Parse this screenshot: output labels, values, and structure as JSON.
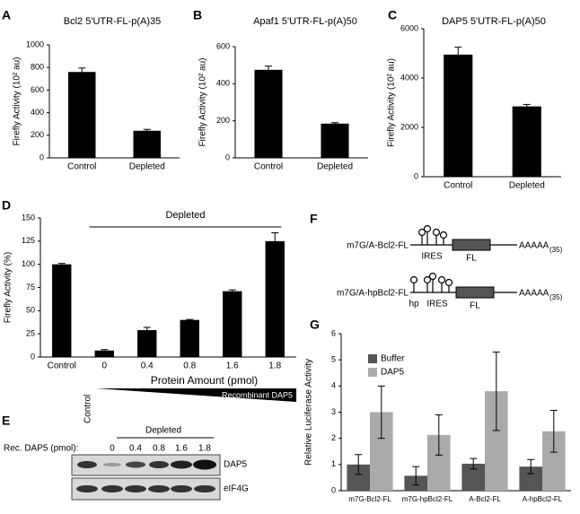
{
  "chart_data": [
    {
      "type": "bar",
      "panel": "A",
      "title": "Bcl2 5'UTR-FL-p(A)35",
      "ylabel": "Firefly Activity (10² au)",
      "categories": [
        "Control",
        "Depleted"
      ],
      "values": [
        760,
        240
      ],
      "errors": [
        35,
        12
      ],
      "color": "#000000",
      "ylim": [
        0,
        1000
      ],
      "yticks": [
        0,
        200,
        400,
        600,
        800,
        1000
      ]
    },
    {
      "type": "bar",
      "panel": "B",
      "title": "Apaf1 5'UTR-FL-p(A)50",
      "ylabel": "Firefly Activity (10² au)",
      "categories": [
        "Control",
        "Depleted"
      ],
      "values": [
        475,
        185
      ],
      "errors": [
        20,
        5
      ],
      "color": "#000000",
      "ylim": [
        0,
        600
      ],
      "yticks": [
        0,
        200,
        400,
        600
      ]
    },
    {
      "type": "bar",
      "panel": "C",
      "title": "DAP5 5'UTR-FL-p(A)50",
      "ylabel": "Firefly Activity (10² au)",
      "categories": [
        "Control",
        "Depleted"
      ],
      "values": [
        4950,
        2850
      ],
      "errors": [
        300,
        80
      ],
      "color": "#000000",
      "ylim": [
        0,
        6000
      ],
      "yticks": [
        0,
        2000,
        4000,
        6000
      ]
    },
    {
      "type": "bar",
      "panel": "D",
      "ylabel": "Firefly Activity (%)",
      "xlabel": "Protein Amount (pmol)",
      "categories": [
        "Control",
        "0",
        "0.4",
        "0.8",
        "1.6",
        "1.8"
      ],
      "values": [
        100,
        7,
        29,
        40,
        71,
        125
      ],
      "errors": [
        1,
        1,
        3,
        0.5,
        1.5,
        9
      ],
      "color": "#000000",
      "ylim": [
        0,
        150
      ],
      "yticks": [
        0,
        25,
        50,
        75,
        100,
        125,
        150
      ],
      "annotations": [
        "Depleted",
        "Recombinant DAP5"
      ]
    },
    {
      "type": "bar",
      "panel": "G",
      "ylabel": "Relative Luciferase Activity",
      "categories": [
        "m7G-Bcl2-FL",
        "m7G-hpBcl2-FL",
        "A-Bcl2-FL",
        "A-hpBcl2-FL"
      ],
      "series": [
        {
          "name": "Buffer",
          "color": "#555555",
          "values": [
            1.0,
            0.57,
            1.03,
            0.92
          ],
          "errors": [
            0.38,
            0.35,
            0.2,
            0.27
          ]
        },
        {
          "name": "DAP5",
          "color": "#aaaaaa",
          "values": [
            3.0,
            2.13,
            3.8,
            2.27
          ],
          "errors": [
            1.0,
            0.77,
            1.5,
            0.8
          ]
        }
      ],
      "ylim": [
        0,
        6
      ],
      "yticks": [
        0,
        1,
        2,
        3,
        4,
        5,
        6
      ],
      "legend": "upper-left"
    }
  ],
  "blot": {
    "panel": "E",
    "control": "Control",
    "group": "Depleted",
    "row_label": "Rec. DAP5 (pmol):",
    "lanes": [
      "0",
      "0.4",
      "0.8",
      "1.6",
      "1.8"
    ],
    "bands": [
      "DAP5",
      "eIF4G"
    ]
  },
  "diagram": {
    "panel": "F",
    "constructs": [
      {
        "name": "m7G/A-Bcl2-FL",
        "ires": "IRES",
        "orf": "FL",
        "tail": "AAAAA",
        "tail_len": "(35)"
      },
      {
        "name": "m7G/A-hpBcl2-FL",
        "hp": "hp",
        "ires": "IRES",
        "orf": "FL",
        "tail": "AAAAA",
        "tail_len": "(35)"
      }
    ]
  }
}
